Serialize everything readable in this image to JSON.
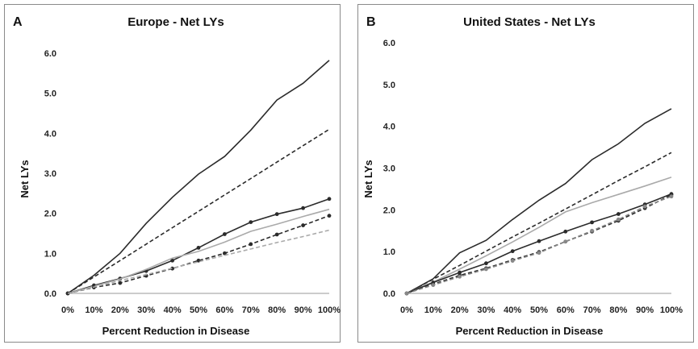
{
  "chart_data": [
    {
      "panel_letter": "A",
      "type": "line",
      "title": "Europe - Net LYs",
      "xlabel": "Percent Reduction in Disease",
      "ylabel": "Net LYs",
      "categories": [
        "0%",
        "10%",
        "20%",
        "30%",
        "40%",
        "50%",
        "60%",
        "70%",
        "80%",
        "90%",
        "100%"
      ],
      "ylim": [
        0,
        6
      ],
      "yticks": [
        "0.0",
        "1.0",
        "2.0",
        "3.0",
        "4.0",
        "5.0",
        "6.0"
      ],
      "grid": false,
      "series": [
        {
          "style": "solid",
          "color": "#2b2b2b",
          "markers": false,
          "values": [
            0,
            0.45,
            1.0,
            1.75,
            2.4,
            2.98,
            3.42,
            4.08,
            4.83,
            5.25,
            5.82
          ]
        },
        {
          "style": "dashed",
          "color": "#2b2b2b",
          "markers": false,
          "values": [
            0,
            0.41,
            0.82,
            1.23,
            1.64,
            2.05,
            2.46,
            2.87,
            3.28,
            3.69,
            4.1
          ]
        },
        {
          "style": "solid",
          "color": "#2b2b2b",
          "markers": true,
          "values": [
            0,
            0.2,
            0.37,
            0.56,
            0.82,
            1.14,
            1.48,
            1.78,
            1.98,
            2.13,
            2.36
          ]
        },
        {
          "style": "solid",
          "color": "#aaaaaa",
          "markers": false,
          "values": [
            0,
            0.18,
            0.36,
            0.6,
            0.88,
            1.05,
            1.28,
            1.55,
            1.73,
            1.92,
            2.1
          ]
        },
        {
          "style": "dashed",
          "color": "#2b2b2b",
          "markers": true,
          "values": [
            0,
            0.15,
            0.26,
            0.44,
            0.62,
            0.82,
            1.0,
            1.23,
            1.47,
            1.7,
            1.94
          ]
        },
        {
          "style": "dashed",
          "color": "#aaaaaa",
          "markers": false,
          "values": [
            0,
            0.16,
            0.32,
            0.47,
            0.63,
            0.79,
            0.95,
            1.11,
            1.27,
            1.42,
            1.58
          ]
        }
      ]
    },
    {
      "panel_letter": "B",
      "type": "line",
      "title": "United States - Net LYs",
      "xlabel": "Percent Reduction in Disease",
      "ylabel": "Net LYs",
      "categories": [
        "0%",
        "10%",
        "20%",
        "30%",
        "40%",
        "50%",
        "60%",
        "70%",
        "80%",
        "90%",
        "100%"
      ],
      "ylim": [
        0,
        6
      ],
      "yticks": [
        "0.0",
        "1.0",
        "2.0",
        "3.0",
        "4.0",
        "5.0",
        "6.0"
      ],
      "grid": false,
      "series": [
        {
          "style": "solid",
          "color": "#2b2b2b",
          "markers": false,
          "values": [
            0,
            0.35,
            0.97,
            1.27,
            1.77,
            2.23,
            2.63,
            3.2,
            3.58,
            4.07,
            4.42
          ]
        },
        {
          "style": "dashed",
          "color": "#2b2b2b",
          "markers": false,
          "values": [
            0,
            0.34,
            0.67,
            1.01,
            1.35,
            1.68,
            2.02,
            2.36,
            2.7,
            3.03,
            3.37
          ]
        },
        {
          "style": "solid",
          "color": "#aaaaaa",
          "markers": false,
          "values": [
            0,
            0.27,
            0.58,
            0.9,
            1.23,
            1.58,
            1.95,
            2.17,
            2.37,
            2.57,
            2.78
          ]
        },
        {
          "style": "solid",
          "color": "#2b2b2b",
          "markers": true,
          "values": [
            0,
            0.26,
            0.5,
            0.72,
            1.01,
            1.25,
            1.48,
            1.7,
            1.9,
            2.13,
            2.38
          ]
        },
        {
          "style": "dashed",
          "color": "#2b2b2b",
          "markers": true,
          "values": [
            0,
            0.22,
            0.43,
            0.6,
            0.8,
            0.99,
            1.24,
            1.48,
            1.74,
            2.04,
            2.36
          ]
        },
        {
          "style": "dashed",
          "color": "#888888",
          "markers": true,
          "values": [
            0,
            0.2,
            0.4,
            0.58,
            0.78,
            0.97,
            1.24,
            1.5,
            1.77,
            2.08,
            2.32
          ]
        }
      ]
    }
  ]
}
